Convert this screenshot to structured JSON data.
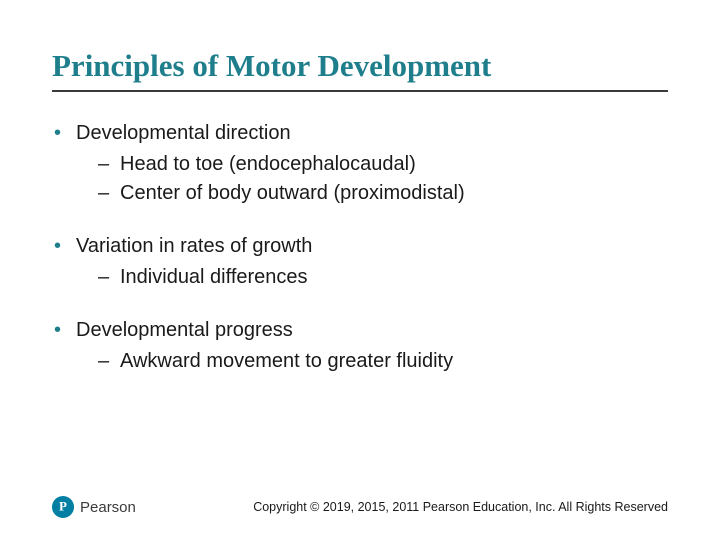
{
  "title": "Principles of Motor Development",
  "title_color": "#1f7e8c",
  "title_fontsize": 31,
  "bullets": [
    {
      "text": "Developmental direction",
      "subs": [
        "Head to toe (endocephalocaudal)",
        "Center of body outward (proximodistal)"
      ]
    },
    {
      "text": "Variation in rates of growth",
      "subs": [
        "Individual differences"
      ]
    },
    {
      "text": "Developmental progress",
      "subs": [
        "Awkward movement to greater fluidity"
      ]
    }
  ],
  "logo_text": "Pearson",
  "copyright": "Copyright © 2019, 2015, 2011 Pearson Education, Inc. All Rights Reserved"
}
